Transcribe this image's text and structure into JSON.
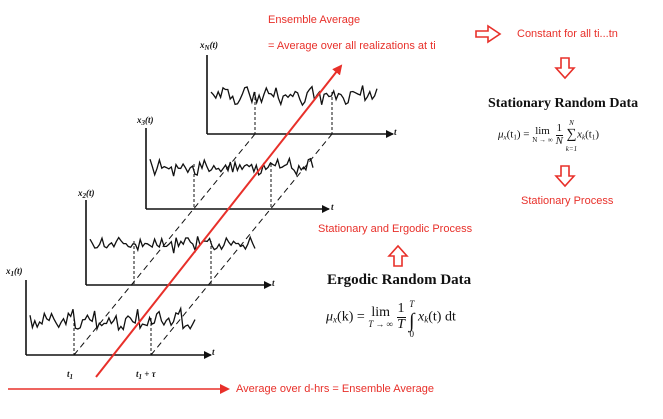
{
  "top_labels": {
    "ensemble_average": "Ensemble Average",
    "average_over_realizations": "= Average over all realizations at ti",
    "constant": "Constant for all ti...tn"
  },
  "stationary": {
    "title": "Stationary Random Data",
    "formula": {
      "lhs": "μ",
      "lhs_sub": "x",
      "arg": "(t",
      "arg_sub": "1",
      "arg_close": ") = ",
      "lim": "lim",
      "lim_sub": "N → ∞",
      "frac_num": "1",
      "frac_den": "N",
      "sum_top": "N",
      "sum_symbol": "∑",
      "sum_bot": "k=1",
      "term": "x",
      "term_sub": "k",
      "term_arg": "(t",
      "term_arg_sub": "1",
      "term_close": ")"
    },
    "process_label": "Stationary Process"
  },
  "ergodic": {
    "process_label": "Stationary and Ergodic Process",
    "title": "Ergodic Random Data",
    "formula": {
      "lhs": "μ",
      "lhs_sub": "x",
      "arg": "(k) = ",
      "lim": "lim",
      "lim_sub": "T → ∞",
      "frac_num": "1",
      "frac_den": "T",
      "int_symbol": "∫",
      "int_top": "T",
      "int_bot": "0",
      "term": "x",
      "term_sub": "k",
      "term_rest": "(t) dt"
    }
  },
  "bottom_label": "Average over d-hrs = Ensemble Average",
  "plots": {
    "labels": [
      {
        "name": "x",
        "sub": "1",
        "rest": "(t)"
      },
      {
        "name": "x",
        "sub": "2",
        "rest": "(t)"
      },
      {
        "name": "x",
        "sub": "3",
        "rest": "(t)"
      },
      {
        "name": "x",
        "sub": "N",
        "rest": "(t)"
      }
    ],
    "axis_t": "t",
    "t1": "t",
    "t1_sub": "1",
    "t1_tau": "t",
    "t1_tau_sub": "1",
    "t1_tau_rest": " + τ"
  },
  "colors": {
    "accent_red": "#e8302a",
    "ink": "#111111"
  }
}
